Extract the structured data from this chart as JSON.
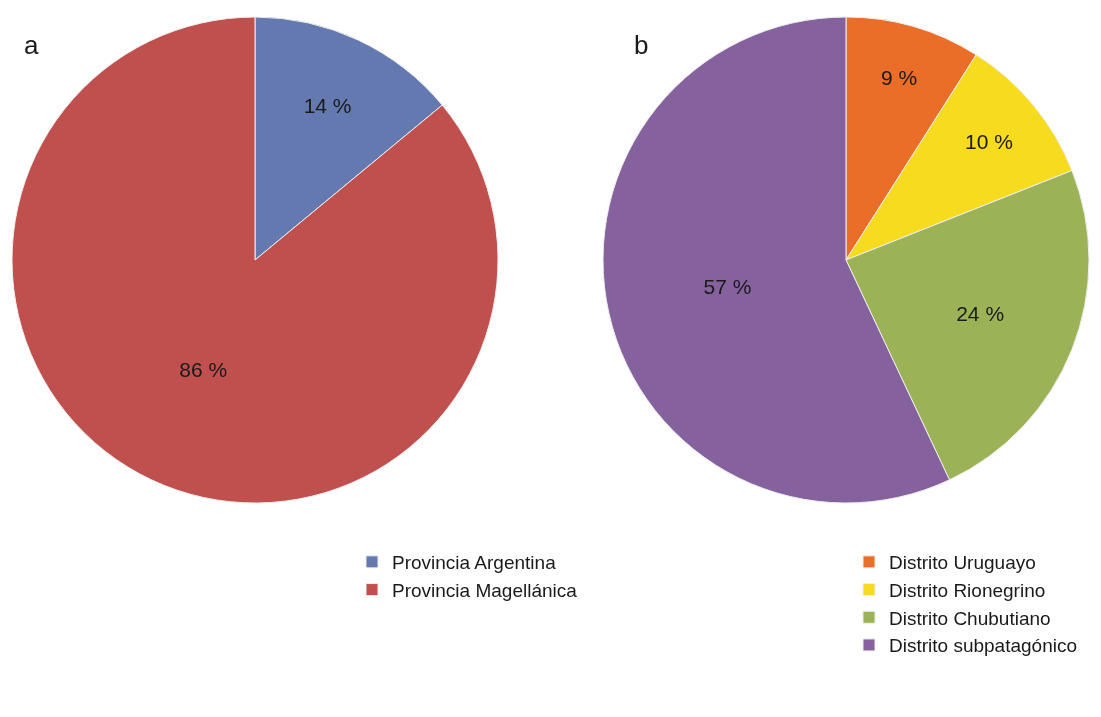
{
  "chart_data": [
    {
      "type": "pie",
      "title": "a",
      "categories": [
        "Provincia Argentina",
        "Provincia Magellánica"
      ],
      "values": [
        14,
        86
      ],
      "value_labels": [
        "14 %",
        "86 %"
      ],
      "colors": [
        "#6479b0",
        "#c0504d"
      ],
      "legend": "bottom right"
    },
    {
      "type": "pie",
      "title": "b",
      "categories": [
        "Distrito Uruguayo",
        "Distrito Rionegrino",
        "Distrito Chubutiano",
        "Distrito subpatagónico"
      ],
      "values": [
        9,
        10,
        24,
        57
      ],
      "value_labels": [
        "9 %",
        "10 %",
        "24 %",
        "57 %"
      ],
      "colors": [
        "#ea6d28",
        "#f6db1e",
        "#9bb356",
        "#85629e"
      ],
      "legend": "bottom right"
    }
  ]
}
